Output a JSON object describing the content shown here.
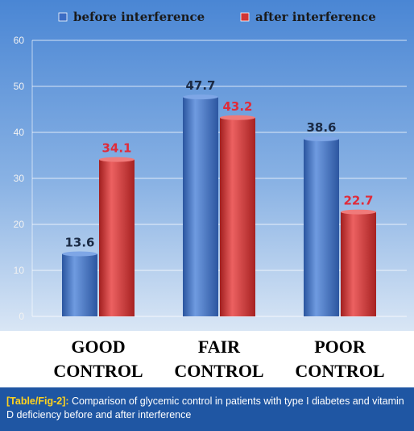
{
  "chart_data": {
    "type": "bar",
    "categories": [
      [
        "GOOD",
        "CONTROL"
      ],
      [
        "FAIR",
        "CONTROL"
      ],
      [
        "POOR",
        "CONTROL"
      ]
    ],
    "series": [
      {
        "name": "before interference",
        "values": [
          13.6,
          47.7,
          38.6
        ],
        "color": "#3b6cc4",
        "label_color": "#1a2a44"
      },
      {
        "name": "after interference",
        "values": [
          34.1,
          43.2,
          22.7
        ],
        "color": "#d03535",
        "label_color": "#e02b3a"
      }
    ],
    "y_ticks": [
      "0",
      "10",
      "20",
      "30",
      "40",
      "50",
      "60"
    ],
    "ylim": [
      0,
      60
    ],
    "grid": true,
    "legend_position": "top"
  },
  "caption": {
    "label": "[Table/Fig-2]:",
    "text": " Comparison of glycemic control in patients with type I diabetes and vitamin D deficiency before and after interference"
  },
  "colors": {
    "plot_top": "#4a86d4",
    "plot_bottom": "#cfe0f3",
    "caption_bg": "#1f56a3",
    "caption_label": "#ffd21f"
  }
}
